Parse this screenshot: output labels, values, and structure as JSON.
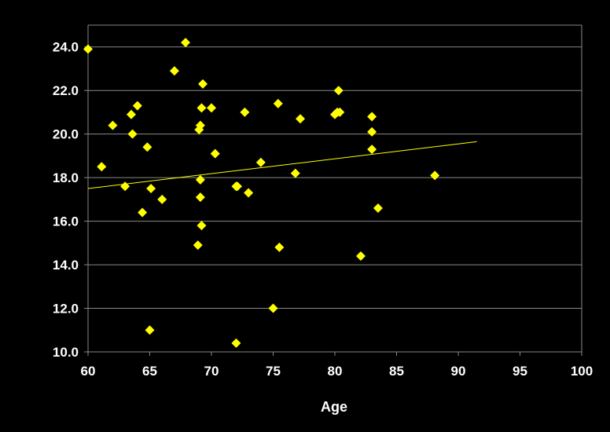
{
  "chart_data": {
    "type": "scatter",
    "title": "",
    "xlabel": "Age",
    "ylabel": "",
    "xlim": [
      60,
      100
    ],
    "ylim": [
      10,
      25
    ],
    "x_ticks": [
      60,
      65,
      70,
      75,
      80,
      85,
      90,
      95,
      100
    ],
    "y_ticks": [
      10,
      12,
      14,
      16,
      18,
      20,
      22,
      24
    ],
    "x_tick_labels": [
      "60",
      "65",
      "70",
      "75",
      "80",
      "85",
      "90",
      "95",
      "100"
    ],
    "y_tick_labels": [
      "10.0",
      "12.0",
      "14.0",
      "16.0",
      "18.0",
      "20.0",
      "22.0",
      "24.0"
    ],
    "grid": true,
    "legend": "none",
    "colors": {
      "background": "#000000",
      "marker": "#FFFF00",
      "trendline": "#FFFF00",
      "gridline": "#888888",
      "text": "#FFFFFF"
    },
    "series": [
      {
        "marker": "diamond",
        "points": [
          [
            60.0,
            23.9
          ],
          [
            61.1,
            18.5
          ],
          [
            62.0,
            20.4
          ],
          [
            63.0,
            17.6
          ],
          [
            63.5,
            20.9
          ],
          [
            63.6,
            20.0
          ],
          [
            64.0,
            21.3
          ],
          [
            64.4,
            16.4
          ],
          [
            64.8,
            19.4
          ],
          [
            65.0,
            11.0
          ],
          [
            65.1,
            17.5
          ],
          [
            66.0,
            17.0
          ],
          [
            67.0,
            22.9
          ],
          [
            67.9,
            24.2
          ],
          [
            68.9,
            14.9
          ],
          [
            69.0,
            20.2
          ],
          [
            69.1,
            20.4
          ],
          [
            69.1,
            17.9
          ],
          [
            69.1,
            17.1
          ],
          [
            69.2,
            15.8
          ],
          [
            69.2,
            21.2
          ],
          [
            69.3,
            22.3
          ],
          [
            70.0,
            21.2
          ],
          [
            70.3,
            19.1
          ],
          [
            72.0,
            17.6
          ],
          [
            72.1,
            17.6
          ],
          [
            72.0,
            10.4
          ],
          [
            72.7,
            21.0
          ],
          [
            73.0,
            17.3
          ],
          [
            74.0,
            18.7
          ],
          [
            75.0,
            12.0
          ],
          [
            75.4,
            21.4
          ],
          [
            75.5,
            14.8
          ],
          [
            76.8,
            18.2
          ],
          [
            77.2,
            20.7
          ],
          [
            80.0,
            20.9
          ],
          [
            80.2,
            21.0
          ],
          [
            80.3,
            22.0
          ],
          [
            80.4,
            21.0
          ],
          [
            82.1,
            14.4
          ],
          [
            83.0,
            20.8
          ],
          [
            83.0,
            20.1
          ],
          [
            83.0,
            19.3
          ],
          [
            83.5,
            16.6
          ],
          [
            88.1,
            18.1
          ]
        ]
      }
    ],
    "trendline": {
      "x": [
        60,
        91.5
      ],
      "y": [
        17.5,
        19.65
      ]
    }
  }
}
